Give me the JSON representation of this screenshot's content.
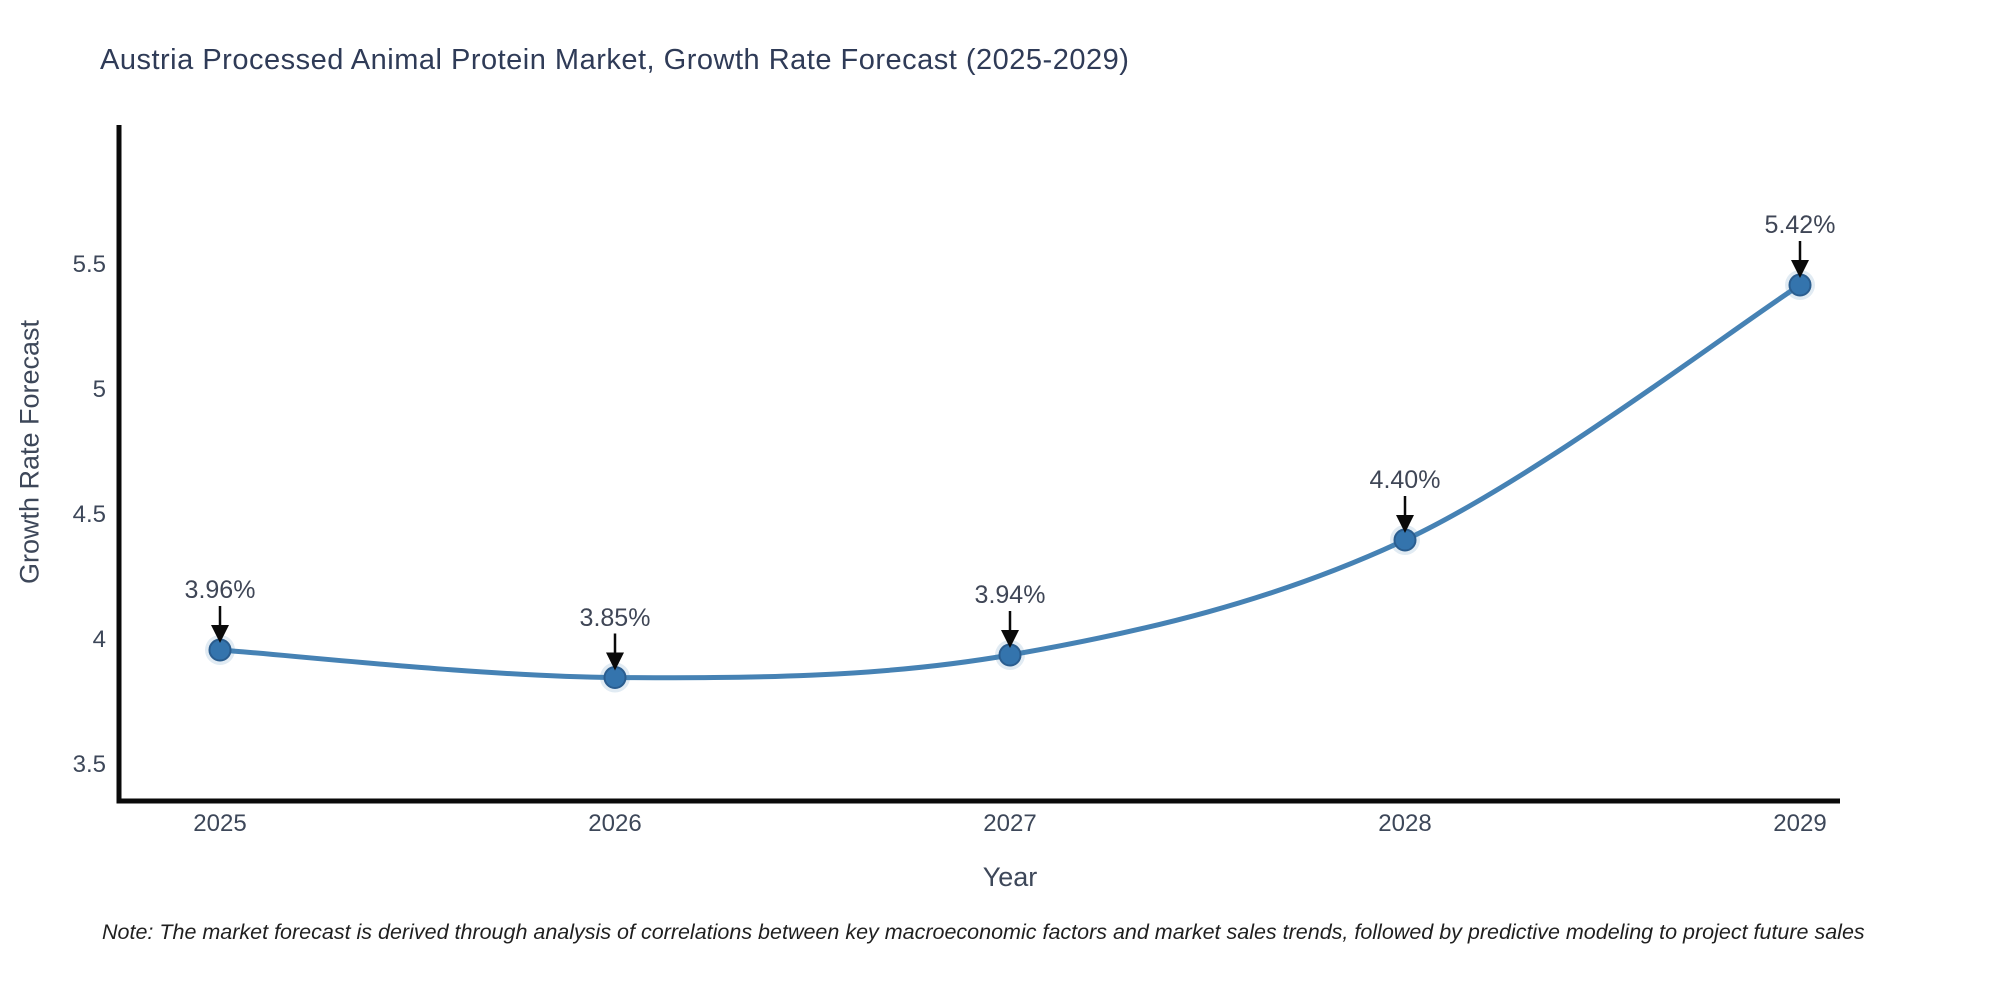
{
  "title": "Austria Processed Animal Protein Market, Growth Rate Forecast (2025-2029)",
  "note": "Note: The market forecast is derived through analysis of correlations between key macroeconomic factors and market sales trends, followed by predictive modeling to project future sales",
  "chart_data": {
    "type": "line",
    "categories": [
      "2025",
      "2026",
      "2027",
      "2028",
      "2029"
    ],
    "series": [
      {
        "name": "Growth Rate Forecast",
        "values": [
          3.96,
          3.85,
          3.94,
          4.4,
          5.42
        ]
      }
    ],
    "point_labels": [
      "3.96%",
      "3.85%",
      "3.94%",
      "4.40%",
      "5.42%"
    ],
    "title": "Austria Processed Animal Protein Market, Growth Rate Forecast (2025-2029)",
    "xlabel": "Year",
    "ylabel": "Growth Rate Forecast",
    "yticks": [
      3.5,
      4,
      4.5,
      5,
      5.5
    ],
    "ytick_labels": [
      "3.5",
      "4",
      "4.5",
      "5",
      "5.5"
    ],
    "ylim": [
      3.36,
      6.06
    ],
    "grid": false,
    "legend": "none",
    "smooth": true,
    "marker": "circle",
    "colors": {
      "line": "#4682b4",
      "marker_fill": "#3474ad",
      "marker_edge": "#2a5d8f",
      "marker_halo": "rgba(70,130,180,0.16)",
      "annotation_arrow": "#0a0a0a",
      "axis": "#0a0a0a",
      "title_text": "#2f3b57",
      "tick_text": "#3d4759",
      "note_text": "#1f1f1f"
    }
  }
}
